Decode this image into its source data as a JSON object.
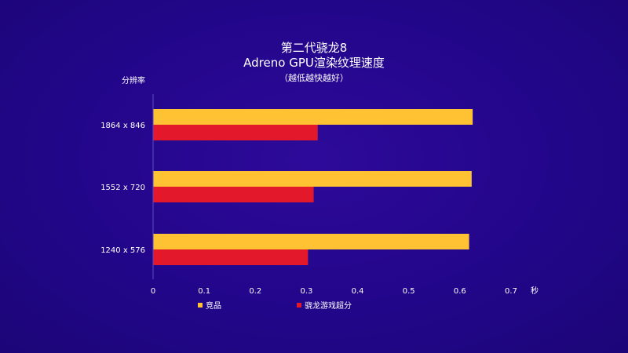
{
  "chart_data": {
    "type": "bar",
    "orientation": "horizontal",
    "title": "第二代骁龙8",
    "subtitle": "Adreno GPU渲染纹理速度",
    "note": "（越低越快越好）",
    "ylabel": "分辨率",
    "xlabel": "秒",
    "categories": [
      "1864 x 846",
      "1552 x 720",
      "1240 x 576"
    ],
    "series": [
      {
        "name": "竞品",
        "color": "#ffc233",
        "values": [
          0.625,
          0.623,
          0.618
        ]
      },
      {
        "name": "骁龙游戏超分",
        "color": "#e3192b",
        "values": [
          0.322,
          0.314,
          0.303
        ]
      }
    ],
    "xlim": [
      0,
      0.7
    ],
    "xticks": [
      "0",
      "0.1",
      "0.2",
      "0.3",
      "0.4",
      "0.5",
      "0.6",
      "0.7"
    ],
    "grid": false,
    "legend": "bottom"
  }
}
